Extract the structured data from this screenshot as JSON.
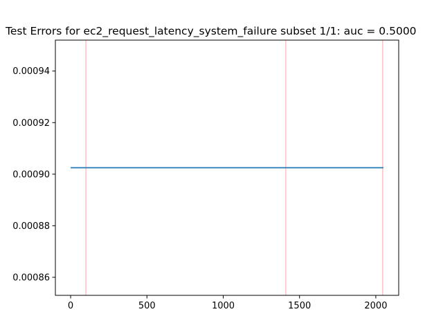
{
  "chart_data": {
    "type": "line",
    "title": "Test Errors for ec2_request_latency_system_failure subset 1/1: auc = 0.5000",
    "xlabel": "",
    "ylabel": "",
    "xlim": [
      -100,
      2150
    ],
    "ylim": [
      0.000853,
      0.000952
    ],
    "x_ticks": [
      0,
      500,
      1000,
      1500,
      2000
    ],
    "y_ticks": [
      0.00086,
      0.00088,
      0.0009,
      0.00092,
      0.00094
    ],
    "x_tick_labels": [
      "0",
      "500",
      "1000",
      "1500",
      "2000"
    ],
    "y_tick_labels": [
      "0.00086",
      "0.00088",
      "0.00090",
      "0.00092",
      "0.00094"
    ],
    "series": [
      {
        "x": [
          0,
          2050
        ],
        "values": [
          0.0009025,
          0.0009025
        ],
        "color": "#1f77b4"
      }
    ],
    "vertical_lines": [
      {
        "x": 100,
        "color": "#ffb3b3"
      },
      {
        "x": 1410,
        "color": "#ffb3b3"
      },
      {
        "x": 2045,
        "color": "#ffb3b3"
      }
    ],
    "grid": false,
    "legend": "none"
  }
}
